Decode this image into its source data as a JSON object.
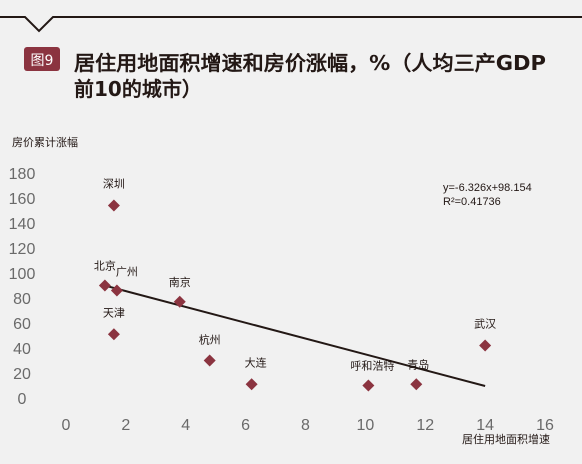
{
  "header": {
    "badge": "图9",
    "title_line1": "居住用地面积增速和房价涨幅，%（人均三产GDP",
    "title_line2": "前10的城市）"
  },
  "colors": {
    "accent": "#8b3440",
    "marker": "#8b3440",
    "text": "#231815",
    "tick": "#6a6a6a",
    "background": "#f1f1f1"
  },
  "chart_data": {
    "type": "scatter",
    "xlabel": "居住用地面积增速",
    "ylabel": "房价累计涨幅",
    "xlim": [
      0,
      16
    ],
    "ylim": [
      0,
      180
    ],
    "x_ticks": [
      "0",
      "2",
      "4",
      "6",
      "8",
      "10",
      "12",
      "14",
      "16"
    ],
    "y_ticks": [
      "0",
      "20",
      "40",
      "60",
      "80",
      "100",
      "120",
      "140",
      "160",
      "180"
    ],
    "grid": false,
    "points": [
      {
        "label": "深圳",
        "x": 1.6,
        "y": 154
      },
      {
        "label": "北京",
        "x": 1.3,
        "y": 90
      },
      {
        "label": "广州",
        "x": 1.7,
        "y": 86
      },
      {
        "label": "南京",
        "x": 3.8,
        "y": 77
      },
      {
        "label": "天津",
        "x": 1.6,
        "y": 51
      },
      {
        "label": "杭州",
        "x": 4.8,
        "y": 30
      },
      {
        "label": "大连",
        "x": 6.2,
        "y": 11
      },
      {
        "label": "呼和浩特",
        "x": 10.1,
        "y": 10
      },
      {
        "label": "青岛",
        "x": 11.7,
        "y": 11
      },
      {
        "label": "武汉",
        "x": 14.0,
        "y": 42
      }
    ],
    "trendline": {
      "slope": -6.326,
      "intercept": 98.154,
      "x_range": [
        1.3,
        14
      ],
      "equation": "y=-6.326x+98.154",
      "r2": "R²=0.41736"
    }
  }
}
